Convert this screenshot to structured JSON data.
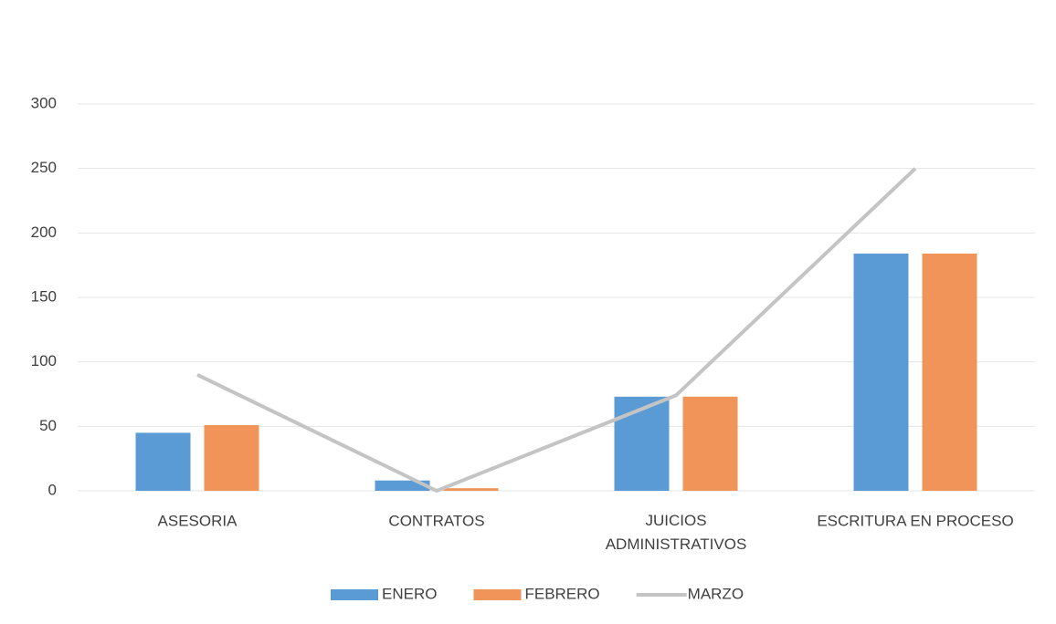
{
  "chart_data": {
    "type": "bar",
    "categories": [
      "ASESORIA",
      "CONTRATOS",
      "JUICIOS ADMINISTRATIVOS",
      "ESCRITURA EN PROCESO"
    ],
    "series": [
      {
        "name": "ENERO",
        "color": "#5b9bd5",
        "type": "bar",
        "values": [
          45,
          8,
          73,
          184
        ]
      },
      {
        "name": "FEBRERO",
        "color": "#f0945a",
        "type": "bar",
        "values": [
          51,
          2,
          73,
          184
        ]
      },
      {
        "name": "MARZO",
        "color": "#c4c4c4",
        "type": "line",
        "values": [
          90,
          0,
          74,
          250
        ]
      }
    ],
    "ylim": [
      0,
      300
    ],
    "yticks": [
      0,
      50,
      100,
      150,
      200,
      250,
      300
    ],
    "grid": true,
    "legend": "bottom"
  }
}
